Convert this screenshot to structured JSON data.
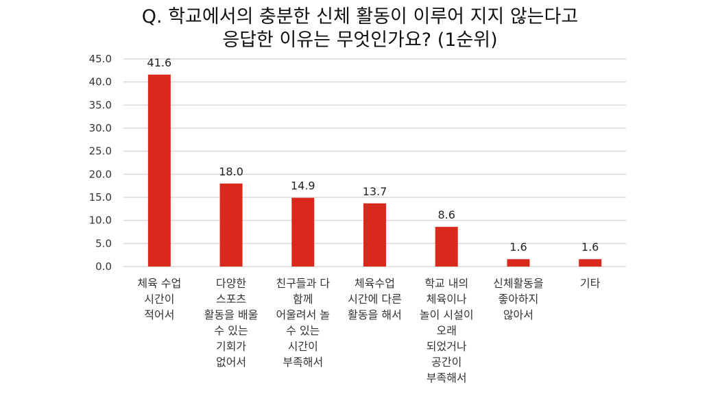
{
  "chart_data": {
    "type": "bar",
    "title_lines": [
      "Q. 학교에서의 충분한 신체 활동이 이루어 지지 않는다고",
      "응답한 이유는 무엇인가요? (1순위)"
    ],
    "categories": [
      [
        "체육 수업",
        "시간이",
        "적어서"
      ],
      [
        "다양한",
        "스포츠",
        "활동을 배울",
        "수 있는",
        "기회가",
        "없어서"
      ],
      [
        "친구들과 다",
        "함께",
        "어울려서 놀",
        "수 있는",
        "시간이",
        "부족해서"
      ],
      [
        "체육수업",
        "시간에 다른",
        "활동을 해서"
      ],
      [
        "학교 내의",
        "체육이나",
        "놀이 시설이",
        "오래",
        "되었거나",
        "공간이",
        "부족해서"
      ],
      [
        "신체활동을",
        "좋아하지",
        "않아서"
      ],
      [
        "기타"
      ]
    ],
    "values": [
      41.6,
      18.0,
      14.9,
      13.7,
      8.6,
      1.6,
      1.6
    ],
    "value_labels": [
      "41.6",
      "18.0",
      "14.9",
      "13.7",
      "8.6",
      "1.6",
      "1.6"
    ],
    "y_ticks": [
      "0.0",
      "5.0",
      "10.0",
      "15.0",
      "20.0",
      "25.0",
      "30.0",
      "35.0",
      "40.0",
      "45.0"
    ],
    "ylim": [
      0,
      45
    ],
    "grid": true,
    "bar_color": "#d9291c",
    "grid_color": "#d9d9d9"
  }
}
